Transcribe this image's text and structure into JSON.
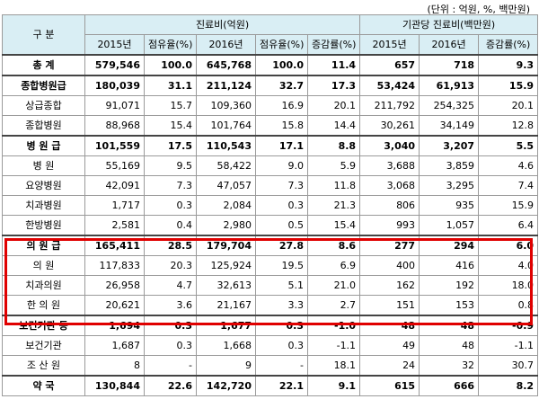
{
  "unit_note": "(단위 : 억원, %, 백만원)",
  "header": {
    "category": "구 분",
    "group1": "진료비(억원)",
    "group2": "기관당 진료비(백만원)",
    "cols": [
      "2015년",
      "점유율(%)",
      "2016년",
      "점유율(%)",
      "증감률(%)",
      "2015년",
      "2016년",
      "증감률(%)"
    ]
  },
  "rows": [
    {
      "label": "총 계",
      "cells": [
        "579,546",
        "100.0",
        "645,768",
        "100.0",
        "11.4",
        "657",
        "718",
        "9.3"
      ]
    },
    {
      "label": "종합병원급",
      "cells": [
        "180,039",
        "31.1",
        "211,124",
        "32.7",
        "17.3",
        "53,424",
        "61,913",
        "15.9"
      ]
    },
    {
      "label": "상급종합",
      "cells": [
        "91,071",
        "15.7",
        "109,360",
        "16.9",
        "20.1",
        "211,792",
        "254,325",
        "20.1"
      ]
    },
    {
      "label": "종합병원",
      "cells": [
        "88,968",
        "15.4",
        "101,764",
        "15.8",
        "14.4",
        "30,261",
        "34,149",
        "12.8"
      ]
    },
    {
      "label": "병 원 급",
      "cells": [
        "101,559",
        "17.5",
        "110,543",
        "17.1",
        "8.8",
        "3,040",
        "3,207",
        "5.5"
      ]
    },
    {
      "label": "병 원",
      "cells": [
        "55,169",
        "9.5",
        "58,422",
        "9.0",
        "5.9",
        "3,688",
        "3,859",
        "4.6"
      ]
    },
    {
      "label": "요양병원",
      "cells": [
        "42,091",
        "7.3",
        "47,057",
        "7.3",
        "11.8",
        "3,068",
        "3,295",
        "7.4"
      ]
    },
    {
      "label": "치과병원",
      "cells": [
        "1,717",
        "0.3",
        "2,084",
        "0.3",
        "21.3",
        "806",
        "935",
        "15.9"
      ]
    },
    {
      "label": "한방병원",
      "cells": [
        "2,581",
        "0.4",
        "2,980",
        "0.5",
        "15.4",
        "993",
        "1,057",
        "6.4"
      ]
    },
    {
      "label": "의 원 급",
      "cells": [
        "165,411",
        "28.5",
        "179,704",
        "27.8",
        "8.6",
        "277",
        "294",
        "6.0"
      ]
    },
    {
      "label": "의 원",
      "cells": [
        "117,833",
        "20.3",
        "125,924",
        "19.5",
        "6.9",
        "400",
        "416",
        "4.0"
      ]
    },
    {
      "label": "치과의원",
      "cells": [
        "26,958",
        "4.7",
        "32,613",
        "5.1",
        "21.0",
        "162",
        "192",
        "18.0"
      ]
    },
    {
      "label": "한 의 원",
      "cells": [
        "20,621",
        "3.6",
        "21,167",
        "3.3",
        "2.7",
        "151",
        "153",
        "0.8"
      ]
    },
    {
      "label": "보건기관 등",
      "cells": [
        "1,694",
        "0.3",
        "1,677",
        "0.3",
        "-1.0",
        "48",
        "48",
        "-0.9"
      ]
    },
    {
      "label": "보건기관",
      "cells": [
        "1,687",
        "0.3",
        "1,668",
        "0.3",
        "-1.1",
        "49",
        "48",
        "-1.1"
      ]
    },
    {
      "label": "조 산 원",
      "cells": [
        "8",
        "-",
        "9",
        "-",
        "18.1",
        "24",
        "32",
        "30.7"
      ]
    },
    {
      "label": "약 국",
      "cells": [
        "130,844",
        "22.6",
        "142,720",
        "22.1",
        "9.1",
        "615",
        "666",
        "8.2"
      ]
    }
  ]
}
